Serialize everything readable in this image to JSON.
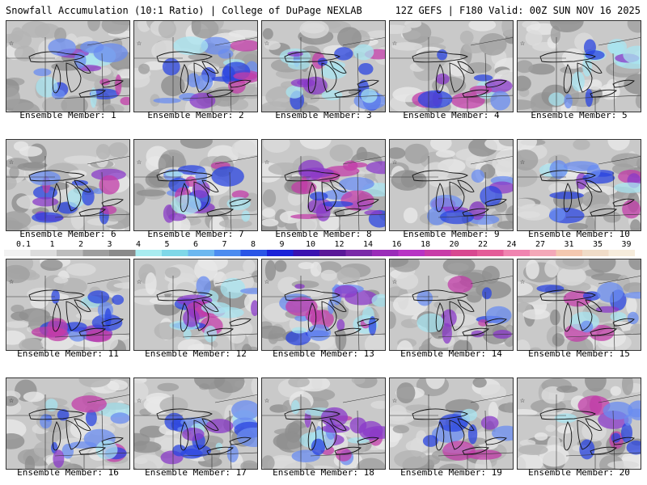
{
  "header": {
    "left": "Snowfall Accumulation (10:1 Ratio) | College of DuPage NEXLAB",
    "right": "12Z GEFS | F180 Valid: 00Z SUN NOV 16 2025"
  },
  "colorbar": {
    "labels": [
      "0.1",
      "1",
      "2",
      "3",
      "4",
      "5",
      "6",
      "7",
      "8",
      "9",
      "10",
      "12",
      "14",
      "16",
      "18",
      "20",
      "22",
      "24",
      "27",
      "31",
      "35",
      "39"
    ],
    "colors": [
      "#f2f2f2",
      "#dcdcdc",
      "#bdbdbd",
      "#9e9e9e",
      "#8a8a8a",
      "#a8ecf0",
      "#7fd8e8",
      "#6cb8f0",
      "#4c8cf0",
      "#2a55e6",
      "#1a22d8",
      "#3a12b0",
      "#5a1898",
      "#7a2aa8",
      "#9a2cb8",
      "#b834c4",
      "#c83ca8",
      "#d84890",
      "#e45c98",
      "#f084b0",
      "#f4a8b8",
      "#f4c8b0",
      "#f0dcc8",
      "#f6ecdc"
    ]
  },
  "members": [
    {
      "caption": "Ensemble Member: 1"
    },
    {
      "caption": "Ensemble Member: 2"
    },
    {
      "caption": "Ensemble Member: 3"
    },
    {
      "caption": "Ensemble Member: 4"
    },
    {
      "caption": "Ensemble Member: 5"
    },
    {
      "caption": "Ensemble Member: 6"
    },
    {
      "caption": "Ensemble Member: 7"
    },
    {
      "caption": "Ensemble Member: 8"
    },
    {
      "caption": "Ensemble Member: 9"
    },
    {
      "caption": "Ensemble Member: 10"
    },
    {
      "caption": "Ensemble Member: 11"
    },
    {
      "caption": "Ensemble Member: 12"
    },
    {
      "caption": "Ensemble Member: 13"
    },
    {
      "caption": "Ensemble Member: 14"
    },
    {
      "caption": "Ensemble Member: 15"
    },
    {
      "caption": "Ensemble Member: 16"
    },
    {
      "caption": "Ensemble Member: 17"
    },
    {
      "caption": "Ensemble Member: 18"
    },
    {
      "caption": "Ensemble Member: 19"
    },
    {
      "caption": "Ensemble Member: 20"
    }
  ]
}
